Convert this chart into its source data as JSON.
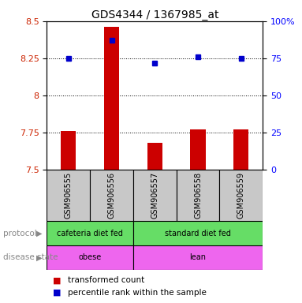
{
  "title": "GDS4344 / 1367985_at",
  "samples": [
    "GSM906555",
    "GSM906556",
    "GSM906557",
    "GSM906558",
    "GSM906559"
  ],
  "red_values": [
    7.76,
    8.46,
    7.68,
    7.77,
    7.77
  ],
  "blue_values": [
    75,
    87,
    72,
    76,
    75
  ],
  "ymin": 7.5,
  "ymax": 8.5,
  "yticks": [
    7.5,
    7.75,
    8.0,
    8.25,
    8.5
  ],
  "ytick_labels": [
    "7.5",
    "7.75",
    "8",
    "8.25",
    "8.5"
  ],
  "y2min": 0,
  "y2max": 100,
  "y2ticks": [
    0,
    25,
    50,
    75,
    100
  ],
  "y2tick_labels": [
    "0",
    "25",
    "50",
    "75",
    "100%"
  ],
  "protocol_label": "protocol",
  "disease_label": "disease state",
  "cafeteria_label": "cafeteria diet fed",
  "standard_label": "standard diet fed",
  "obese_label": "obese",
  "lean_label": "lean",
  "legend_red": "transformed count",
  "legend_blue": "percentile rank within the sample",
  "bar_color": "#CC0000",
  "dot_color": "#0000CC",
  "green_color": "#66DD66",
  "pink_color": "#EE66EE",
  "gray_color": "#C8C8C8",
  "bar_width": 0.35,
  "background_color": "#FFFFFF"
}
